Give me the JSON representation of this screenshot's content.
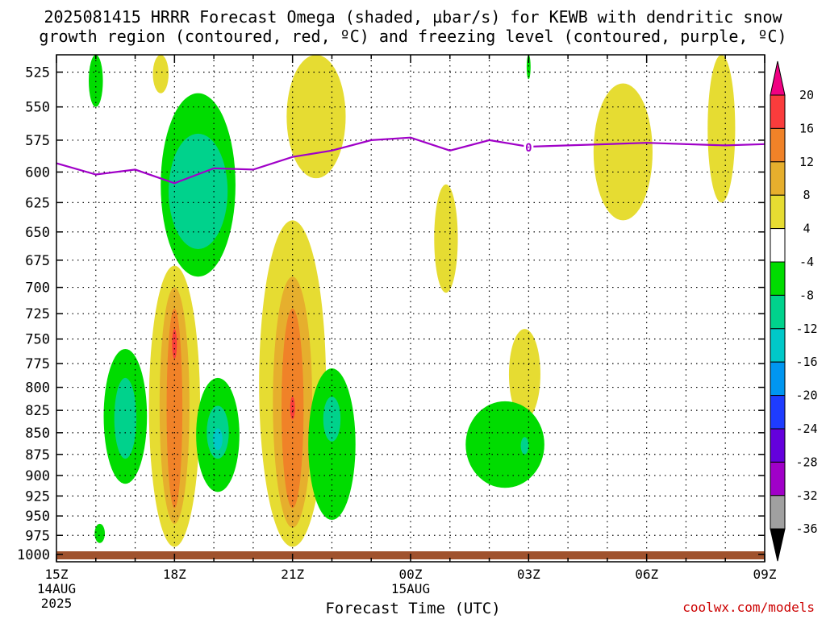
{
  "title_line1": "2025081415 HRRR Forecast Omega (shaded, µbar/s) for KEWB with dendritic snow",
  "title_line2": "growth region (contoured, red, ºC) and freezing level (contoured, purple, ºC)",
  "xlabel": "Forecast Time (UTC)",
  "credit": "coolwx.com/models",
  "colors": {
    "purple_line": "#a000c8",
    "ground": "#a0522d",
    "yellow": "#e6dc32",
    "gold": "#e6af2d",
    "orange": "#f08228",
    "red": "#fa3c3c",
    "magenta": "#f00082",
    "green": "#00dc00",
    "teal": "#00d28c",
    "cyan": "#00c8c8",
    "blue": "#1e3cff",
    "gray": "#a0a0a0"
  },
  "chart_data": {
    "type": "heatmap",
    "y_levels": [
      "525",
      "550",
      "575",
      "600",
      "625",
      "650",
      "675",
      "700",
      "725",
      "750",
      "775",
      "800",
      "825",
      "850",
      "875",
      "900",
      "925",
      "950",
      "975",
      "1000"
    ],
    "x_ticks": [
      {
        "label": "15Z",
        "date": "14AUG",
        "year": "2025",
        "hour": 0
      },
      {
        "label": "18Z",
        "hour": 3
      },
      {
        "label": "21Z",
        "hour": 6
      },
      {
        "label": "00Z",
        "date": "15AUG",
        "hour": 9
      },
      {
        "label": "03Z",
        "hour": 12
      },
      {
        "label": "06Z",
        "hour": 15
      },
      {
        "label": "09Z",
        "hour": 18
      }
    ],
    "colorbar_labels": [
      "20",
      "16",
      "12",
      "8",
      "4",
      "-4",
      "-8",
      "-12",
      "-16",
      "-20",
      "-24",
      "-28",
      "-32",
      "-36"
    ],
    "freezing_level": {
      "label": "0",
      "points": [
        [
          0,
          593
        ],
        [
          1,
          602
        ],
        [
          2,
          598
        ],
        [
          3,
          609
        ],
        [
          4,
          597
        ],
        [
          5,
          598
        ],
        [
          6,
          588
        ],
        [
          7,
          583
        ],
        [
          8,
          575
        ],
        [
          9,
          573
        ],
        [
          10,
          583
        ],
        [
          11,
          575
        ],
        [
          12,
          580
        ],
        [
          13,
          579
        ],
        [
          15,
          577
        ],
        [
          17,
          579
        ],
        [
          18,
          578
        ]
      ]
    },
    "grid": true
  }
}
